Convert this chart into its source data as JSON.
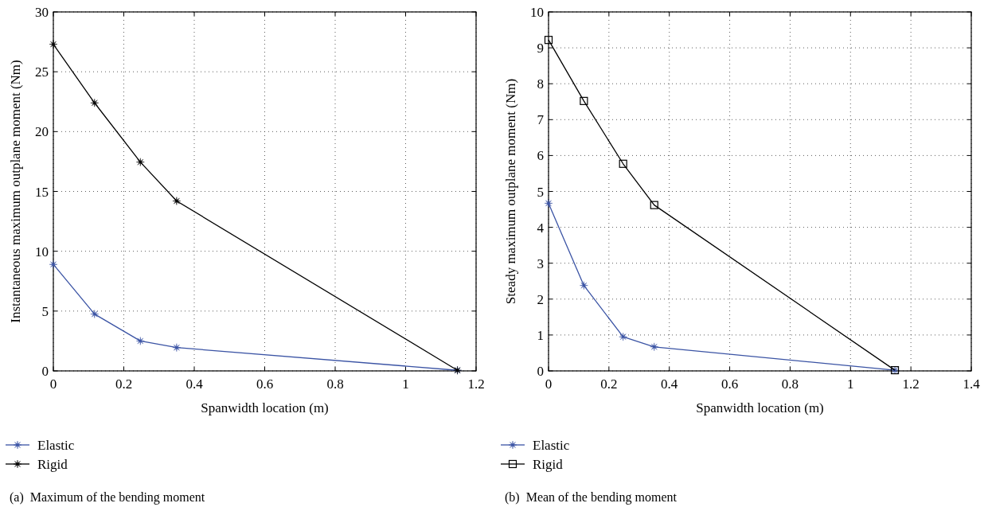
{
  "chart_data": [
    {
      "type": "line",
      "xlabel": "Spanwidth location (m)",
      "ylabel": "Instantaneous maximum outplane moment (Nm)",
      "annotations": [
        "(a)  Maximum of the bending moment"
      ],
      "x": [
        0,
        0.117,
        0.247,
        0.35,
        1.147
      ],
      "series": [
        {
          "name": "Elastic",
          "color": "#3a53a4",
          "marker": "star",
          "values": [
            8.9,
            4.75,
            2.5,
            1.95,
            0.05
          ]
        },
        {
          "name": "Rigid",
          "color": "#000000",
          "marker": "star",
          "values": [
            27.3,
            22.4,
            17.45,
            14.2,
            0.05
          ]
        }
      ],
      "xlim": [
        0,
        1.2
      ],
      "xticks": [
        0,
        0.2,
        0.4,
        0.6,
        0.8,
        1,
        1.2
      ],
      "ylim": [
        0,
        30
      ],
      "yticks": [
        0,
        5,
        10,
        15,
        20,
        25,
        30
      ],
      "grid": true,
      "legend": "bottom left",
      "line_style": "solid"
    },
    {
      "type": "line",
      "xlabel": "Spanwidth location (m)",
      "ylabel": "Steady maximum outplane moment (Nm)",
      "annotations": [
        "(b)  Mean of the bending moment"
      ],
      "x": [
        0,
        0.117,
        0.247,
        0.35,
        1.147
      ],
      "series": [
        {
          "name": "Elastic",
          "color": "#3a53a4",
          "marker": "star",
          "values": [
            4.67,
            2.38,
            0.95,
            0.67,
            0.02
          ]
        },
        {
          "name": "Rigid",
          "color": "#000000",
          "marker": "square",
          "values": [
            9.22,
            7.52,
            5.77,
            4.62,
            0.02
          ]
        }
      ],
      "xlim": [
        0,
        1.4
      ],
      "xticks": [
        0,
        0.2,
        0.4,
        0.6,
        0.8,
        1,
        1.2,
        1.4
      ],
      "ylim": [
        0,
        10
      ],
      "yticks": [
        0,
        1,
        2,
        3,
        4,
        5,
        6,
        7,
        8,
        9,
        10
      ],
      "grid": true,
      "legend": "bottom left",
      "line_style": "solid"
    }
  ]
}
